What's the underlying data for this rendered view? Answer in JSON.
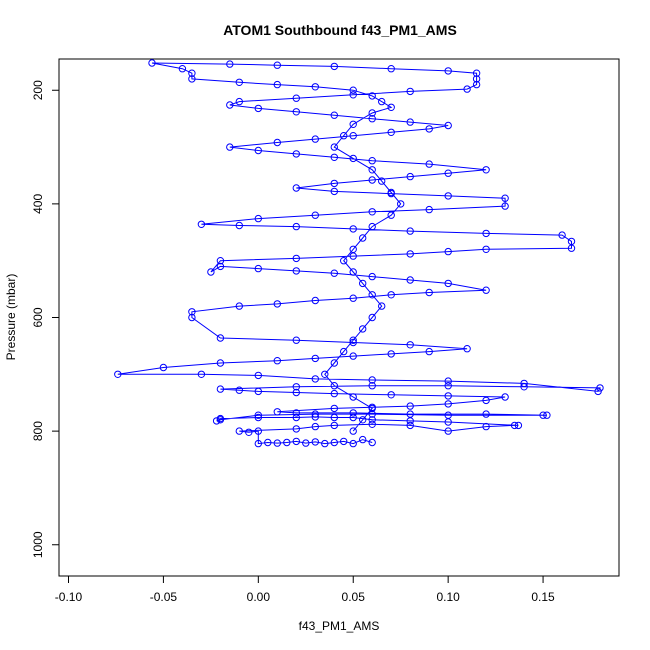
{
  "chart_data": {
    "type": "scatter",
    "title": "ATOM1 Southbound f43_PM1_AMS",
    "xlabel": "f43_PM1_AMS",
    "ylabel": "Pressure (mbar)",
    "xlim": [
      -0.105,
      0.19
    ],
    "ylim": [
      1055,
      145
    ],
    "y_axis_inverted": true,
    "x_ticks": [
      -0.1,
      -0.05,
      0.0,
      0.05,
      0.1,
      0.15
    ],
    "x_tick_labels": [
      "-0.10",
      "-0.05",
      "0.00",
      "0.05",
      "0.10",
      "0.15"
    ],
    "y_ticks": [
      200,
      400,
      600,
      800,
      1000
    ],
    "y_tick_labels": [
      "200",
      "400",
      "600",
      "800",
      "1000"
    ],
    "grid": false,
    "legend": "none",
    "series_color": "#0000ff",
    "marker": "open-circle",
    "connected": true,
    "series": [
      {
        "values": [
          [
            0.06,
            820
          ],
          [
            0.055,
            815
          ],
          [
            0.05,
            822
          ],
          [
            0.045,
            818
          ],
          [
            0.04,
            820
          ],
          [
            0.035,
            822
          ],
          [
            0.03,
            819
          ],
          [
            0.025,
            821
          ],
          [
            0.02,
            818
          ],
          [
            0.015,
            820
          ],
          [
            0.01,
            821
          ],
          [
            0.005,
            820
          ],
          [
            0.0,
            822
          ],
          [
            0.0,
            800
          ],
          [
            -0.005,
            802
          ],
          [
            -0.01,
            800
          ],
          [
            0.02,
            796
          ],
          [
            0.03,
            792
          ],
          [
            0.04,
            790
          ],
          [
            0.06,
            788
          ],
          [
            0.08,
            790
          ],
          [
            0.1,
            800
          ],
          [
            0.12,
            792
          ],
          [
            0.135,
            790
          ],
          [
            0.137,
            790
          ],
          [
            0.1,
            784
          ],
          [
            0.08,
            782
          ],
          [
            0.06,
            780
          ],
          [
            0.05,
            776
          ],
          [
            0.04,
            776
          ],
          [
            0.03,
            775
          ],
          [
            0.02,
            776
          ],
          [
            0.0,
            776
          ],
          [
            -0.02,
            778
          ],
          [
            -0.022,
            782
          ],
          [
            -0.02,
            780
          ],
          [
            0.0,
            772
          ],
          [
            0.03,
            770
          ],
          [
            0.06,
            770
          ],
          [
            0.1,
            772
          ],
          [
            0.15,
            772
          ],
          [
            0.152,
            772
          ],
          [
            0.12,
            770
          ],
          [
            0.08,
            770
          ],
          [
            0.05,
            768
          ],
          [
            0.02,
            768
          ],
          [
            0.01,
            766
          ],
          [
            0.04,
            760
          ],
          [
            0.06,
            758
          ],
          [
            0.08,
            756
          ],
          [
            0.1,
            752
          ],
          [
            0.12,
            746
          ],
          [
            0.13,
            740
          ],
          [
            0.1,
            738
          ],
          [
            0.07,
            736
          ],
          [
            0.04,
            734
          ],
          [
            0.02,
            732
          ],
          [
            0.0,
            730
          ],
          [
            -0.01,
            728
          ],
          [
            -0.02,
            726
          ],
          [
            0.02,
            722
          ],
          [
            0.06,
            720
          ],
          [
            0.1,
            720
          ],
          [
            0.14,
            722
          ],
          [
            0.18,
            724
          ],
          [
            0.179,
            730
          ],
          [
            0.14,
            716
          ],
          [
            0.1,
            712
          ],
          [
            0.06,
            710
          ],
          [
            0.03,
            708
          ],
          [
            0.0,
            702
          ],
          [
            -0.03,
            700
          ],
          [
            -0.074,
            700
          ],
          [
            -0.05,
            688
          ],
          [
            -0.02,
            680
          ],
          [
            0.01,
            676
          ],
          [
            0.03,
            672
          ],
          [
            0.05,
            668
          ],
          [
            0.07,
            664
          ],
          [
            0.09,
            660
          ],
          [
            0.11,
            655
          ],
          [
            0.08,
            648
          ],
          [
            0.05,
            644
          ],
          [
            0.02,
            640
          ],
          [
            -0.02,
            636
          ],
          [
            -0.035,
            600
          ],
          [
            -0.035,
            590
          ],
          [
            -0.01,
            580
          ],
          [
            0.01,
            576
          ],
          [
            0.03,
            570
          ],
          [
            0.05,
            566
          ],
          [
            0.07,
            560
          ],
          [
            0.09,
            556
          ],
          [
            0.12,
            552
          ],
          [
            0.1,
            540
          ],
          [
            0.08,
            534
          ],
          [
            0.06,
            528
          ],
          [
            0.04,
            522
          ],
          [
            0.02,
            518
          ],
          [
            0.0,
            514
          ],
          [
            -0.02,
            510
          ],
          [
            -0.025,
            520
          ],
          [
            -0.02,
            500
          ],
          [
            0.02,
            496
          ],
          [
            0.05,
            492
          ],
          [
            0.08,
            488
          ],
          [
            0.1,
            484
          ],
          [
            0.12,
            480
          ],
          [
            0.165,
            478
          ],
          [
            0.165,
            466
          ],
          [
            0.16,
            455
          ],
          [
            0.12,
            452
          ],
          [
            0.08,
            448
          ],
          [
            0.05,
            444
          ],
          [
            0.02,
            440
          ],
          [
            -0.01,
            438
          ],
          [
            -0.03,
            436
          ],
          [
            0.0,
            426
          ],
          [
            0.03,
            420
          ],
          [
            0.06,
            414
          ],
          [
            0.09,
            410
          ],
          [
            0.13,
            404
          ],
          [
            0.13,
            390
          ],
          [
            0.1,
            386
          ],
          [
            0.07,
            382
          ],
          [
            0.04,
            378
          ],
          [
            0.02,
            372
          ],
          [
            0.04,
            364
          ],
          [
            0.06,
            358
          ],
          [
            0.08,
            352
          ],
          [
            0.1,
            346
          ],
          [
            0.12,
            340
          ],
          [
            0.09,
            330
          ],
          [
            0.06,
            324
          ],
          [
            0.04,
            318
          ],
          [
            0.02,
            312
          ],
          [
            0.0,
            306
          ],
          [
            -0.015,
            300
          ],
          [
            0.01,
            292
          ],
          [
            0.03,
            286
          ],
          [
            0.05,
            280
          ],
          [
            0.07,
            274
          ],
          [
            0.09,
            268
          ],
          [
            0.1,
            262
          ],
          [
            0.08,
            256
          ],
          [
            0.06,
            250
          ],
          [
            0.04,
            244
          ],
          [
            0.02,
            238
          ],
          [
            0.0,
            232
          ],
          [
            -0.015,
            226
          ],
          [
            -0.01,
            220
          ],
          [
            0.02,
            214
          ],
          [
            0.05,
            208
          ],
          [
            0.08,
            202
          ],
          [
            0.11,
            198
          ],
          [
            0.115,
            190
          ],
          [
            0.115,
            180
          ],
          [
            0.115,
            170
          ],
          [
            0.1,
            166
          ],
          [
            0.07,
            162
          ],
          [
            0.04,
            158
          ],
          [
            0.01,
            156
          ],
          [
            -0.015,
            154
          ],
          [
            -0.056,
            152
          ],
          [
            -0.04,
            162
          ],
          [
            -0.035,
            170
          ],
          [
            -0.035,
            180
          ],
          [
            -0.01,
            186
          ],
          [
            0.01,
            190
          ],
          [
            0.03,
            194
          ],
          [
            0.05,
            200
          ],
          [
            0.06,
            210
          ],
          [
            0.065,
            220
          ],
          [
            0.07,
            230
          ],
          [
            0.06,
            240
          ],
          [
            0.05,
            260
          ],
          [
            0.045,
            280
          ],
          [
            0.04,
            300
          ],
          [
            0.05,
            320
          ],
          [
            0.06,
            340
          ],
          [
            0.065,
            360
          ],
          [
            0.07,
            380
          ],
          [
            0.075,
            400
          ],
          [
            0.07,
            420
          ],
          [
            0.06,
            440
          ],
          [
            0.055,
            460
          ],
          [
            0.05,
            480
          ],
          [
            0.045,
            500
          ],
          [
            0.05,
            520
          ],
          [
            0.055,
            540
          ],
          [
            0.06,
            560
          ],
          [
            0.065,
            580
          ],
          [
            0.06,
            600
          ],
          [
            0.055,
            620
          ],
          [
            0.05,
            640
          ],
          [
            0.045,
            660
          ],
          [
            0.04,
            680
          ],
          [
            0.035,
            700
          ],
          [
            0.04,
            720
          ],
          [
            0.05,
            740
          ],
          [
            0.06,
            760
          ],
          [
            0.055,
            780
          ],
          [
            0.05,
            800
          ]
        ]
      }
    ]
  }
}
